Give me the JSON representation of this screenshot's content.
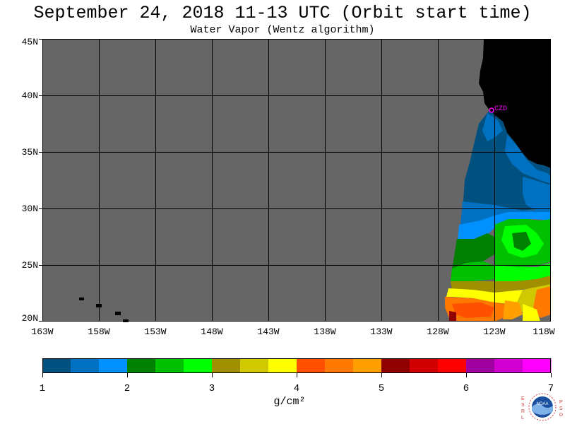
{
  "header": {
    "title": "September 24, 2018  11-13 UTC  (Orbit start time)",
    "subtitle": "Water Vapor (Wentz algorithm)"
  },
  "map": {
    "lat_labels": [
      "45N",
      "40N",
      "35N",
      "30N",
      "25N",
      "20N"
    ],
    "lon_labels": [
      "163W",
      "158W",
      "153W",
      "148W",
      "143W",
      "138W",
      "133W",
      "128W",
      "123W",
      "118W"
    ],
    "station_label": "CZD",
    "colors": {
      "nodata": "#666666",
      "land": "#000000",
      "grid": "#000000",
      "station": "#ff00ff"
    }
  },
  "colorbar": {
    "colors": [
      "#005080",
      "#0070c0",
      "#0090ff",
      "#008000",
      "#00c000",
      "#00ff00",
      "#a09000",
      "#d0c800",
      "#ffff00",
      "#ff5000",
      "#ff7800",
      "#ffa000",
      "#900000",
      "#d00000",
      "#ff0000",
      "#a000a0",
      "#d000d0",
      "#ff00ff"
    ],
    "tick_labels": [
      "1",
      "2",
      "3",
      "4",
      "5",
      "6",
      "7"
    ],
    "units": "g/cm²"
  },
  "logo": {
    "left_text": "ESRL",
    "right_text": "PSD",
    "center_text": "NOAA"
  }
}
